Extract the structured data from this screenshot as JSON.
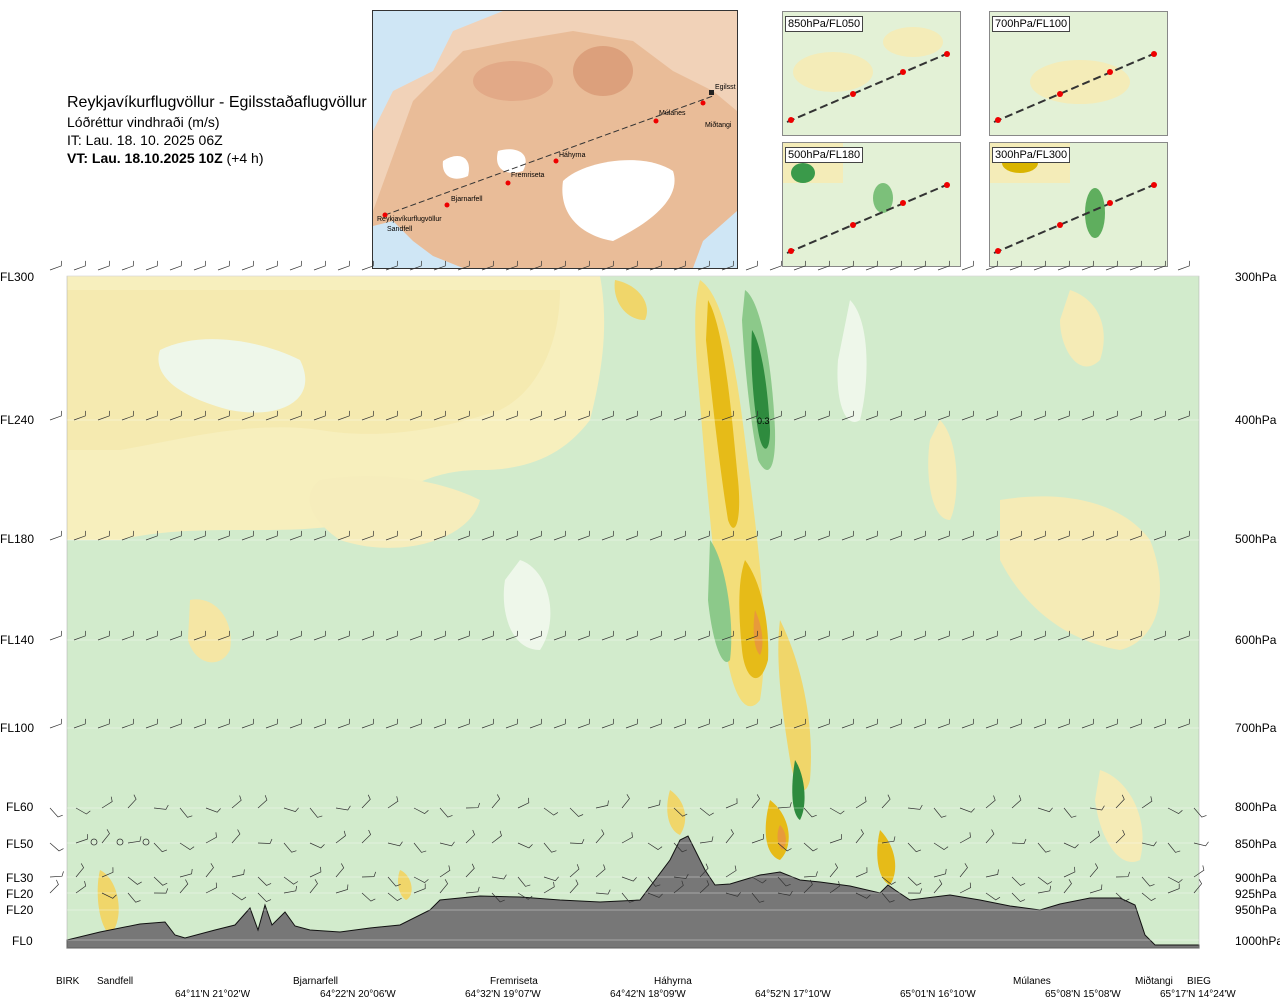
{
  "header": {
    "route": "Reykjavíkurflugvöllur - Egilsstaðaflugvöllur",
    "variable": "Lóðréttur vindhraði (m/s)",
    "it": "IT: Lau. 18. 10. 2025 06Z",
    "vt_bold": "VT: Lau. 18.10.2025 10Z",
    "vt_offset": " (+4 h)"
  },
  "map": {
    "labels": [
      "Reykjavíkurflugvöllur",
      "Sandfell",
      "Bjarnarfell",
      "Fremriseta",
      "Háhyrna",
      "Múlanes",
      "Miðtangi",
      "Egilsst"
    ]
  },
  "thumbnails": [
    "850hPa/FL050",
    "700hPa/FL100",
    "500hPa/FL180",
    "300hPa/FL300"
  ],
  "chart_data": {
    "type": "heatmap",
    "title": "Lóðréttur vindhraði (m/s)",
    "flight_levels": [
      "FL300",
      "FL240",
      "FL180",
      "FL140",
      "FL100",
      "FL60",
      "FL50",
      "FL30",
      "FL20",
      "FL20",
      "FL0"
    ],
    "pressure_levels": [
      "300hPa",
      "400hPa",
      "500hPa",
      "600hPa",
      "700hPa",
      "800hPa",
      "850hPa",
      "900hPa",
      "925hPa",
      "950hPa",
      "1000hPa"
    ],
    "waypoints": [
      "BIRK",
      "Sandfell",
      "Bjarnarfell",
      "Fremriseta",
      "Háhyrna",
      "Múlanes",
      "Miðtangi",
      "BIEG"
    ],
    "coordinates": [
      "64°11'N 21°02'W",
      "64°22'N 20°06'W",
      "64°32'N 19°07'W",
      "64°42'N 18°09'W",
      "64°52'N 17°10'W",
      "65°01'N 16°10'W",
      "65°08'N 15°08'W",
      "65°17'N 14°24'W"
    ],
    "annotation": "0.3",
    "colors": {
      "up": "#c8e6c4",
      "strong_up": "#2e8b3e",
      "down": "#f5eab0",
      "strong_down": "#e6b800",
      "neutral": "#eef7ea",
      "terrain": "#777777"
    }
  }
}
